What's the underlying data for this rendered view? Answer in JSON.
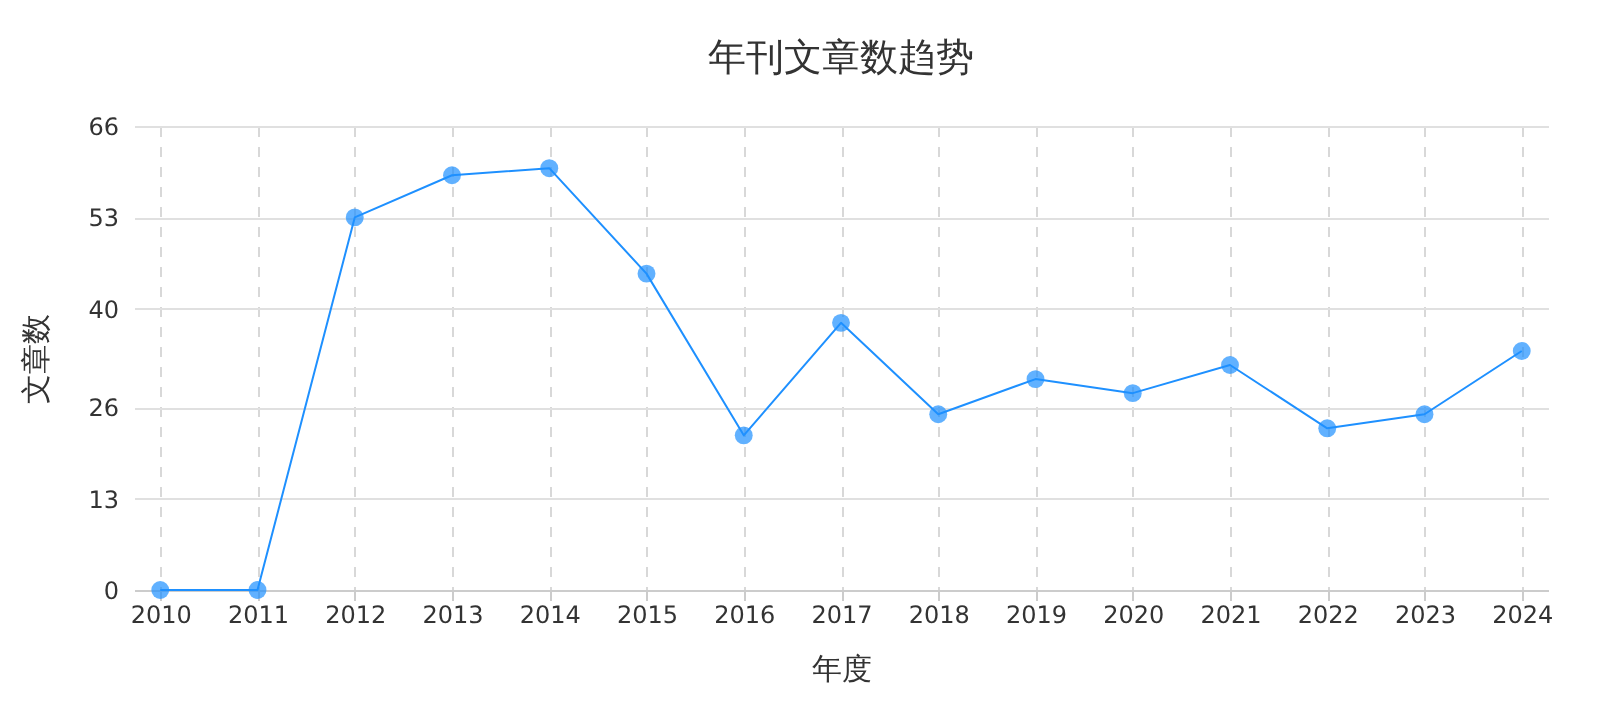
{
  "chart_data": {
    "type": "line",
    "title": "年刊文章数趋势",
    "xlabel": "年度",
    "ylabel": "文章数",
    "categories": [
      "2010",
      "2011",
      "2012",
      "2013",
      "2014",
      "2015",
      "2016",
      "2017",
      "2018",
      "2019",
      "2020",
      "2021",
      "2022",
      "2023",
      "2024"
    ],
    "series": [
      {
        "color": "#1e90ff",
        "values": [
          0,
          0,
          53,
          59,
          60,
          45,
          22,
          38,
          25,
          30,
          28,
          32,
          23,
          25,
          34
        ]
      }
    ],
    "ylim": [
      0,
      66
    ],
    "yticks": [
      0,
      13,
      26,
      40,
      53,
      66
    ],
    "grid": true,
    "marker": "circle",
    "line_style": "solid"
  }
}
